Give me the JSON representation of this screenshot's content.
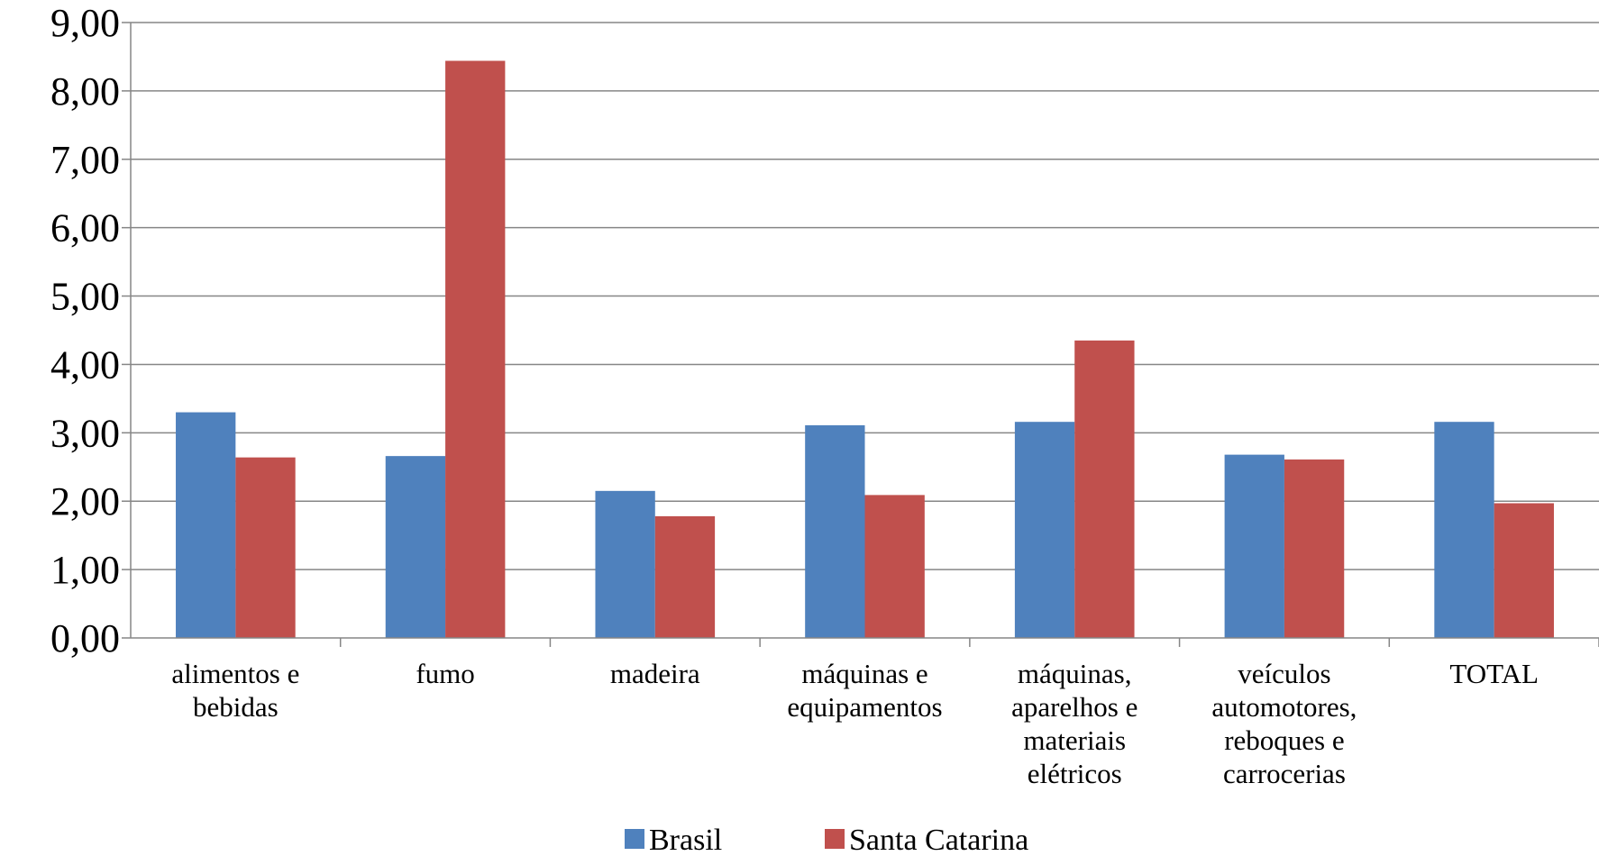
{
  "chart_data": {
    "type": "bar",
    "title": "",
    "xlabel": "",
    "ylabel": "",
    "ylim": [
      0,
      9
    ],
    "y_ticks": [
      "0,00",
      "1,00",
      "2,00",
      "3,00",
      "4,00",
      "5,00",
      "6,00",
      "7,00",
      "8,00",
      "9,00"
    ],
    "grid": true,
    "legend_position": "bottom",
    "categories": [
      "alimentos e bebidas",
      "fumo",
      "madeira",
      "máquinas e equipamentos",
      "máquinas, aparelhos e materiais elétricos",
      "veículos automotores, reboques e carrocerias",
      "TOTAL"
    ],
    "category_lines": [
      [
        "alimentos e",
        "bebidas"
      ],
      [
        "fumo"
      ],
      [
        "madeira"
      ],
      [
        "máquinas e",
        "equipamentos"
      ],
      [
        "máquinas,",
        "aparelhos e",
        "materiais",
        "elétricos"
      ],
      [
        "veículos",
        "automotores,",
        "reboques e",
        "carrocerias"
      ],
      [
        "TOTAL"
      ]
    ],
    "series": [
      {
        "name": "Brasil",
        "color": "#4F81BD",
        "values": [
          3.3,
          2.66,
          2.15,
          3.11,
          3.16,
          2.68,
          3.16
        ]
      },
      {
        "name": "Santa Catarina",
        "color": "#C0504D",
        "values": [
          2.64,
          8.44,
          1.78,
          2.09,
          4.35,
          2.61,
          1.97
        ]
      }
    ]
  }
}
